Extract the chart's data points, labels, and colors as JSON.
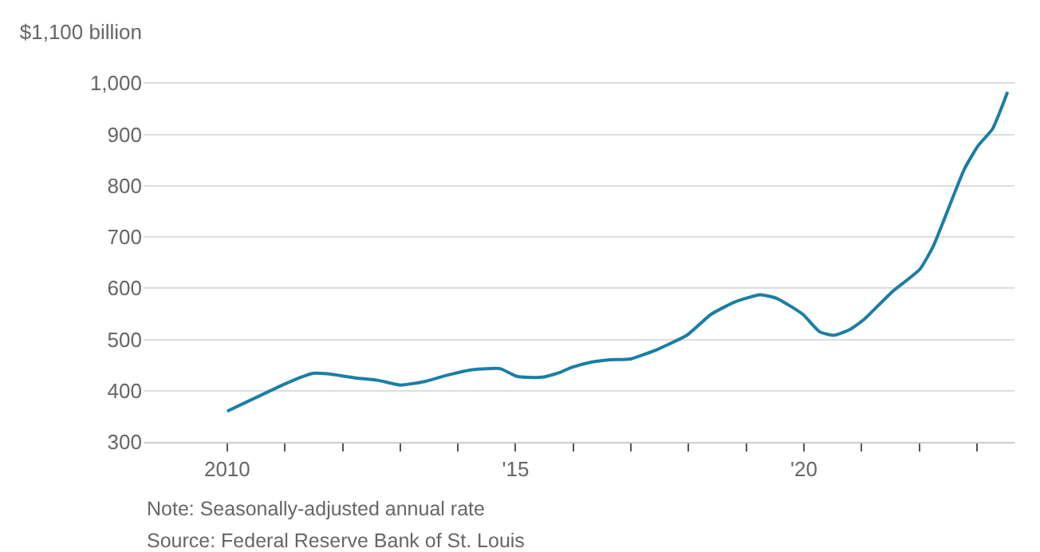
{
  "chart_data": {
    "type": "line",
    "x": [
      2010.0,
      2010.96,
      2011.27,
      2011.49,
      2011.73,
      2012.22,
      2012.62,
      2013.0,
      2013.43,
      2013.84,
      2014.25,
      2014.73,
      2015.02,
      2015.22,
      2015.5,
      2015.78,
      2015.96,
      2016.28,
      2016.6,
      2017.0,
      2017.49,
      2017.98,
      2018.39,
      2018.8,
      2019.24,
      2019.53,
      2019.98,
      2020.27,
      2020.52,
      2020.79,
      2021.04,
      2021.52,
      2022.01,
      2022.25,
      2022.78,
      2023.02,
      2023.27,
      2023.53
    ],
    "series": [
      {
        "color": "#1b7ea5",
        "values": [
          360,
          411,
          426,
          434,
          433,
          425,
          420,
          411,
          418,
          431,
          441,
          443,
          428,
          426,
          427,
          436,
          445,
          455,
          460,
          462,
          482,
          509,
          549,
          573,
          587,
          580,
          549,
          515,
          508,
          519,
          539,
          592,
          637,
          684,
          832,
          878,
          911,
          983
        ]
      }
    ],
    "xlim": [
      2008.55,
      2023.65
    ],
    "xticks": [
      2010,
      {
        "value": 2011,
        "label": null
      },
      {
        "value": 2012,
        "label": null
      },
      {
        "value": 2013,
        "label": null
      },
      {
        "value": 2014,
        "label": null
      },
      {
        "value": 2015,
        "label": "'15"
      },
      {
        "value": 2016,
        "label": null
      },
      {
        "value": 2017,
        "label": null
      },
      {
        "value": 2018,
        "label": null
      },
      {
        "value": 2019,
        "label": null
      },
      {
        "value": 2020,
        "label": "'20"
      },
      {
        "value": 2021,
        "label": null
      },
      {
        "value": 2022,
        "label": null
      },
      {
        "value": 2023,
        "label": null
      }
    ],
    "ylim": [
      300,
      1100
    ],
    "yticks": [
      300,
      400,
      500,
      600,
      700,
      800,
      900,
      "1,000",
      {
        "value": 1100,
        "label": "$1,100 billion"
      }
    ],
    "grid": "y",
    "marker": "none",
    "line_style": "solid",
    "annotations": [
      "Note: Seasonally-adjusted annual rate",
      "Source: Federal Reserve Bank of St. Louis"
    ]
  }
}
